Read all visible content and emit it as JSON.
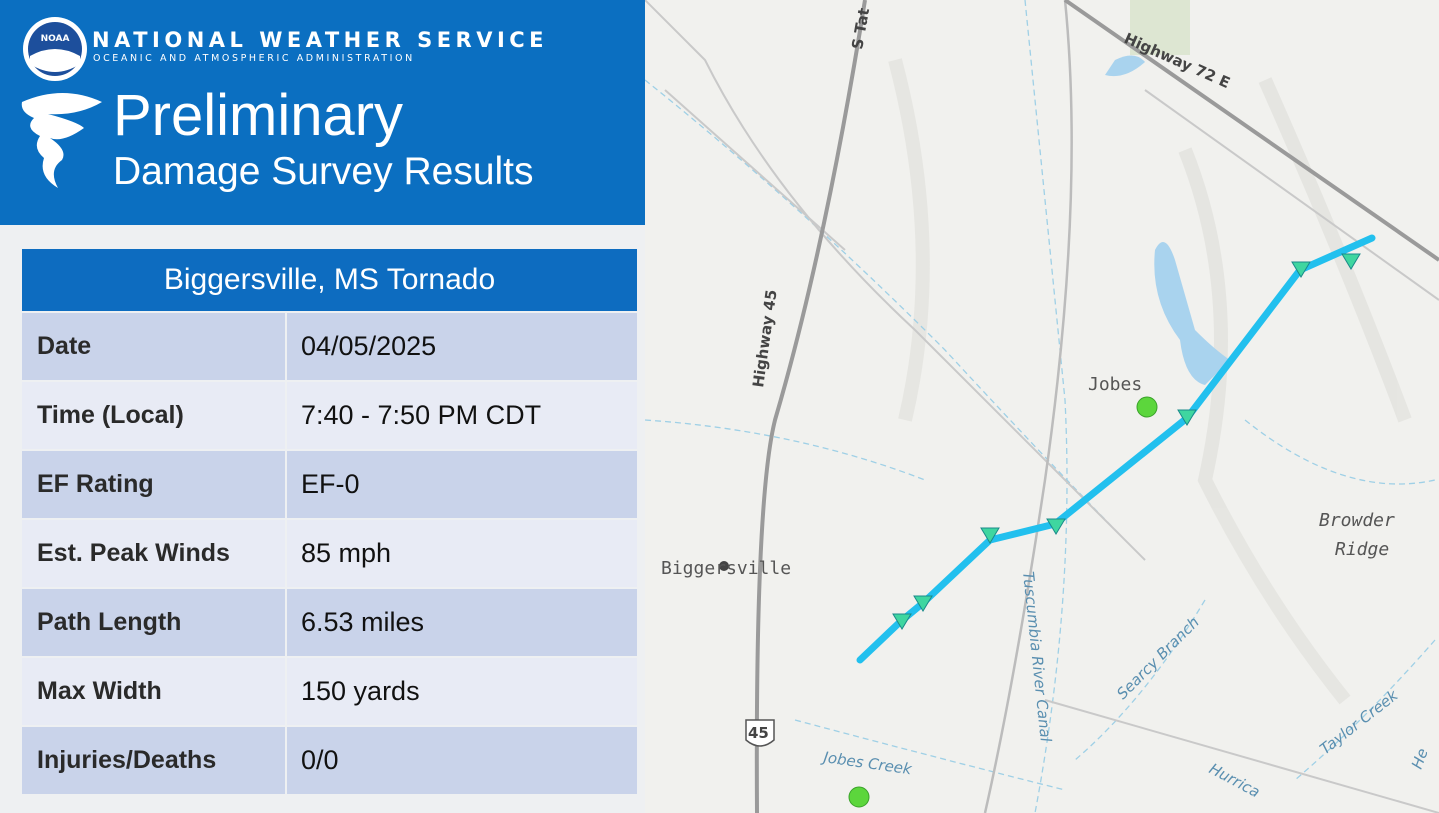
{
  "header": {
    "logo": "NOAA",
    "org": "NATIONAL WEATHER SERVICE",
    "sub": "OCEANIC AND ATMOSPHERIC ADMINISTRATION",
    "title": "Preliminary",
    "subtitle": "Damage Survey Results"
  },
  "table": {
    "title": "Biggersville, MS Tornado",
    "rows": [
      [
        "Date",
        "04/05/2025"
      ],
      [
        "Time (Local)",
        "7:40 - 7:50 PM CDT"
      ],
      [
        "EF Rating",
        "EF-0"
      ],
      [
        "Est. Peak Winds",
        "85 mph"
      ],
      [
        "Path Length",
        "6.53 miles"
      ],
      [
        "Max Width",
        "150 yards"
      ],
      [
        "Injuries/Deaths",
        "0/0"
      ]
    ]
  },
  "map": {
    "roads": [
      "S Tat",
      "Highway 72 E",
      "Highway 45",
      "45"
    ],
    "places": [
      "Jobes",
      "Biggersville",
      "Browder",
      "Ridge"
    ],
    "water": [
      "Tuscumbia River Canal",
      "Searcy Branch",
      "Taylor Creek",
      "Jobes Creek",
      "Hurrica",
      "He"
    ]
  }
}
